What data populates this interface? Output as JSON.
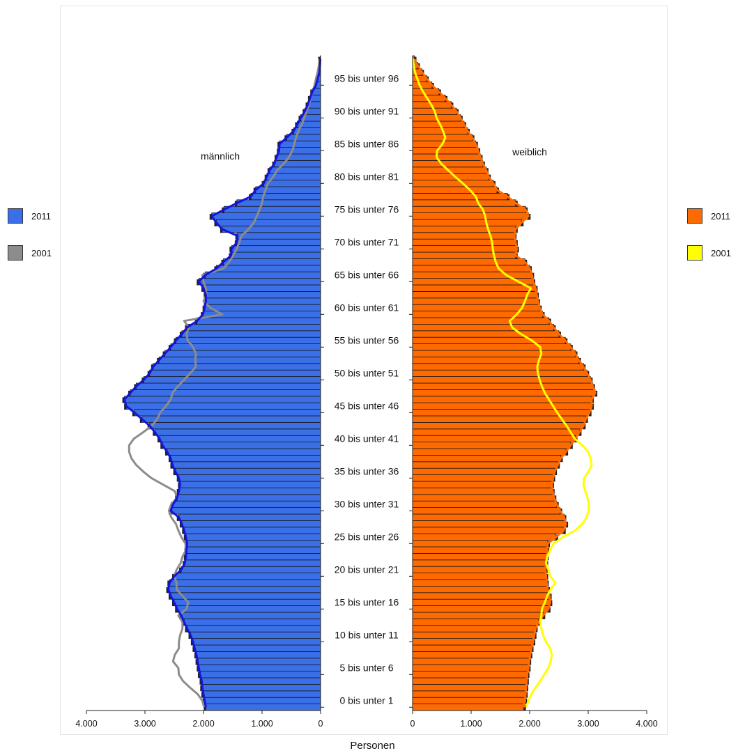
{
  "chart_data": {
    "type": "bar",
    "orientation": "horizontal-population-pyramid",
    "xlabel": "Personen",
    "male_label": "männlich",
    "female_label": "weiblich",
    "x_ticks_male": [
      "4.000",
      "3.000",
      "2.000",
      "1.000",
      "0"
    ],
    "x_ticks_female": [
      "0",
      "1.000",
      "2.000",
      "3.000",
      "4.000"
    ],
    "xlim": [
      0,
      4000
    ],
    "age_labels": [
      "0 bis unter 1",
      "5 bis unter 6",
      "10 bis unter 11",
      "15 bis unter 16",
      "20 bis unter 21",
      "25 bis unter 26",
      "30 bis unter 31",
      "35 bis unter 36",
      "40 bis unter 41",
      "45 bis unter 46",
      "50 bis unter 51",
      "55 bis unter 56",
      "60 bis unter 61",
      "65 bis unter 66",
      "70 bis unter 71",
      "75 bis unter 76",
      "80 bis unter 81",
      "85 bis unter 86",
      "90 bis unter 91",
      "95 bis unter 96"
    ],
    "legend_left": [
      {
        "label": "2011",
        "color": "#3b6fe8"
      },
      {
        "label": "2001",
        "color": "#8c8c8c"
      }
    ],
    "legend_right": [
      {
        "label": "2011",
        "color": "#ff6a00"
      },
      {
        "label": "2001",
        "color": "#ffff00"
      }
    ],
    "series": [
      {
        "name": "männlich 2011",
        "values": [
          1960,
          1980,
          2000,
          2020,
          2030,
          2060,
          2080,
          2100,
          2120,
          2150,
          2180,
          2220,
          2280,
          2330,
          2380,
          2450,
          2500,
          2560,
          2600,
          2580,
          2500,
          2380,
          2320,
          2300,
          2290,
          2280,
          2300,
          2330,
          2370,
          2420,
          2560,
          2520,
          2450,
          2420,
          2400,
          2420,
          2480,
          2530,
          2560,
          2620,
          2700,
          2750,
          2830,
          2920,
          3050,
          3180,
          3320,
          3350,
          3250,
          3150,
          3020,
          2920,
          2860,
          2760,
          2660,
          2560,
          2470,
          2370,
          2280,
          2110,
          2010,
          1980,
          1960,
          1960,
          2000,
          2080,
          1970,
          1780,
          1660,
          1530,
          1520,
          1430,
          1420,
          1680,
          1780,
          1860,
          1650,
          1430,
          1190,
          1110,
          970,
          920,
          870,
          790,
          750,
          710,
          700,
          580,
          460,
          400,
          340,
          270,
          220,
          180,
          140,
          80,
          50,
          20,
          10,
          5
        ]
      },
      {
        "name": "männlich 2001",
        "values": [
          1990,
          2020,
          2100,
          2230,
          2350,
          2420,
          2430,
          2520,
          2490,
          2420,
          2420,
          2400,
          2360,
          2360,
          2430,
          2290,
          2260,
          2360,
          2460,
          2460,
          2500,
          2460,
          2390,
          2360,
          2300,
          2310,
          2380,
          2430,
          2470,
          2550,
          2590,
          2550,
          2450,
          2490,
          2690,
          2890,
          3030,
          3150,
          3230,
          3270,
          3270,
          3190,
          3030,
          2880,
          2790,
          2740,
          2640,
          2560,
          2530,
          2440,
          2330,
          2230,
          2130,
          2140,
          2130,
          2180,
          2270,
          2290,
          2250,
          2330,
          1680,
          1880,
          2000,
          1950,
          1960,
          2000,
          2020,
          1660,
          1560,
          1490,
          1430,
          1390,
          1350,
          1230,
          1140,
          1090,
          1040,
          1000,
          980,
          940,
          900,
          810,
          740,
          630,
          540,
          480,
          450,
          420,
          380,
          320,
          280,
          240,
          200,
          170,
          140,
          100,
          80,
          50,
          30,
          20
        ]
      },
      {
        "name": "weiblich 2011",
        "values": [
          1900,
          1920,
          1930,
          1940,
          1950,
          1960,
          1980,
          1990,
          2010,
          2030,
          2060,
          2080,
          2100,
          2150,
          2230,
          2320,
          2350,
          2340,
          2310,
          2290,
          2280,
          2270,
          2280,
          2290,
          2300,
          2310,
          2450,
          2580,
          2620,
          2590,
          2520,
          2460,
          2420,
          2390,
          2380,
          2400,
          2430,
          2480,
          2530,
          2620,
          2700,
          2780,
          2850,
          2920,
          2960,
          3020,
          3060,
          3060,
          3120,
          3080,
          3040,
          2980,
          2920,
          2840,
          2780,
          2700,
          2610,
          2500,
          2410,
          2330,
          2220,
          2170,
          2140,
          2120,
          2100,
          2060,
          2040,
          2000,
          1920,
          1760,
          1780,
          1760,
          1740,
          1760,
          1860,
          1980,
          1930,
          1760,
          1620,
          1440,
          1380,
          1300,
          1260,
          1200,
          1160,
          1120,
          1080,
          1020,
          940,
          880,
          820,
          750,
          660,
          560,
          450,
          330,
          240,
          160,
          90,
          30
        ]
      },
      {
        "name": "weiblich 2001",
        "values": [
          1940,
          1980,
          2030,
          2100,
          2180,
          2250,
          2320,
          2360,
          2380,
          2350,
          2280,
          2230,
          2200,
          2180,
          2200,
          2210,
          2260,
          2300,
          2360,
          2440,
          2350,
          2320,
          2280,
          2300,
          2350,
          2410,
          2570,
          2780,
          2900,
          2970,
          3010,
          3010,
          2990,
          2950,
          2920,
          2930,
          3010,
          3060,
          3040,
          3000,
          2900,
          2770,
          2700,
          2630,
          2550,
          2470,
          2400,
          2330,
          2260,
          2210,
          2170,
          2140,
          2130,
          2160,
          2200,
          2180,
          2040,
          1850,
          1700,
          1660,
          1780,
          1870,
          1920,
          1960,
          2020,
          1810,
          1600,
          1470,
          1420,
          1390,
          1370,
          1360,
          1330,
          1290,
          1260,
          1240,
          1200,
          1120,
          1080,
          980,
          860,
          730,
          610,
          490,
          410,
          420,
          510,
          560,
          520,
          470,
          410,
          380,
          320,
          250,
          180,
          120,
          80,
          40,
          20,
          10
        ]
      }
    ]
  }
}
